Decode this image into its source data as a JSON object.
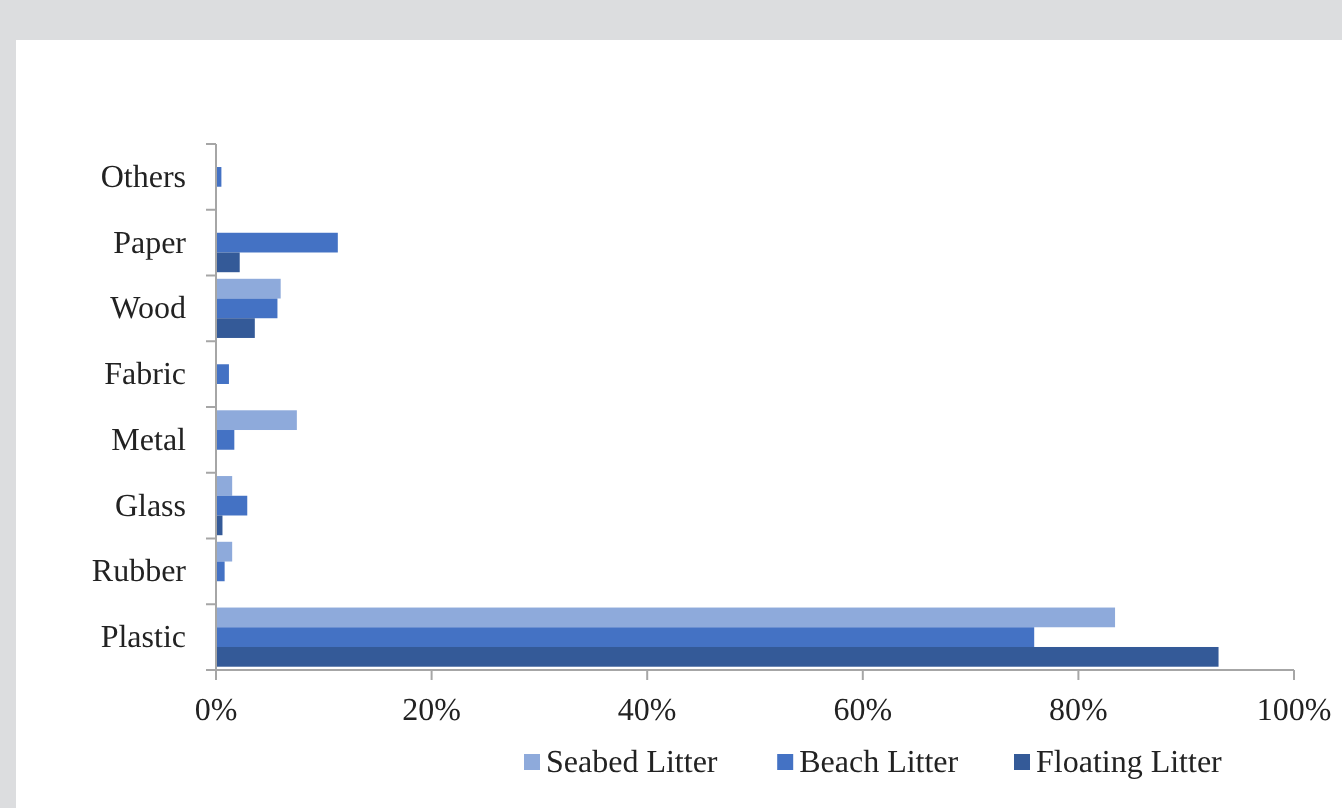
{
  "chart_data": {
    "type": "bar",
    "orientation": "horizontal",
    "categories": [
      "Others",
      "Paper",
      "Wood",
      "Fabric",
      "Metal",
      "Glass",
      "Rubber",
      "Plastic"
    ],
    "series": [
      {
        "name": "Seabed Litter",
        "color": "#8eaadb",
        "values": [
          null,
          null,
          6.0,
          null,
          7.5,
          1.5,
          1.5,
          83.4
        ]
      },
      {
        "name": "Beach Litter",
        "color": "#4472c4",
        "values": [
          0.5,
          11.3,
          5.7,
          1.2,
          1.7,
          2.9,
          0.8,
          75.9
        ]
      },
      {
        "name": "Floating Litter",
        "color": "#345a98",
        "values": [
          null,
          2.2,
          3.6,
          null,
          null,
          0.6,
          null,
          93.0
        ]
      }
    ],
    "xlim": [
      0,
      100
    ],
    "xticks": [
      {
        "value": 0,
        "label": "0%"
      },
      {
        "value": 20,
        "label": "20%"
      },
      {
        "value": 40,
        "label": "40%"
      },
      {
        "value": 60,
        "label": "60%"
      },
      {
        "value": 80,
        "label": "80%"
      },
      {
        "value": 100,
        "label": "100%"
      }
    ],
    "grid": false,
    "legend": "bottom"
  }
}
